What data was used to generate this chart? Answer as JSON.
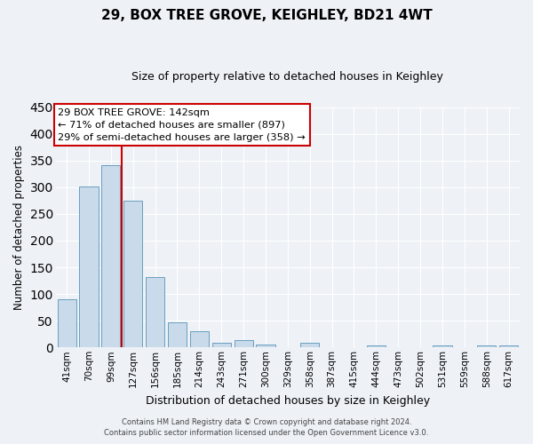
{
  "title": "29, BOX TREE GROVE, KEIGHLEY, BD21 4WT",
  "subtitle": "Size of property relative to detached houses in Keighley",
  "xlabel": "Distribution of detached houses by size in Keighley",
  "ylabel": "Number of detached properties",
  "bar_color": "#c9daea",
  "bar_edge_color": "#6a9ec0",
  "background_color": "#eef2f7",
  "grid_color": "#ffffff",
  "categories": [
    "41sqm",
    "70sqm",
    "99sqm",
    "127sqm",
    "156sqm",
    "185sqm",
    "214sqm",
    "243sqm",
    "271sqm",
    "300sqm",
    "329sqm",
    "358sqm",
    "387sqm",
    "415sqm",
    "444sqm",
    "473sqm",
    "502sqm",
    "531sqm",
    "559sqm",
    "588sqm",
    "617sqm"
  ],
  "values": [
    91,
    301,
    342,
    275,
    131,
    47,
    30,
    8,
    13,
    6,
    0,
    9,
    0,
    0,
    4,
    0,
    0,
    3,
    0,
    3,
    3
  ],
  "ylim": [
    0,
    450
  ],
  "yticks": [
    0,
    50,
    100,
    150,
    200,
    250,
    300,
    350,
    400,
    450
  ],
  "vline_pos": 2.5,
  "vline_color": "#cc0000",
  "annotation_title": "29 BOX TREE GROVE: 142sqm",
  "annotation_line1": "← 71% of detached houses are smaller (897)",
  "annotation_line2": "29% of semi-detached houses are larger (358) →",
  "annotation_box_color": "#ffffff",
  "annotation_box_edge": "#cc0000",
  "footer1": "Contains HM Land Registry data © Crown copyright and database right 2024.",
  "footer2": "Contains public sector information licensed under the Open Government Licence v3.0."
}
